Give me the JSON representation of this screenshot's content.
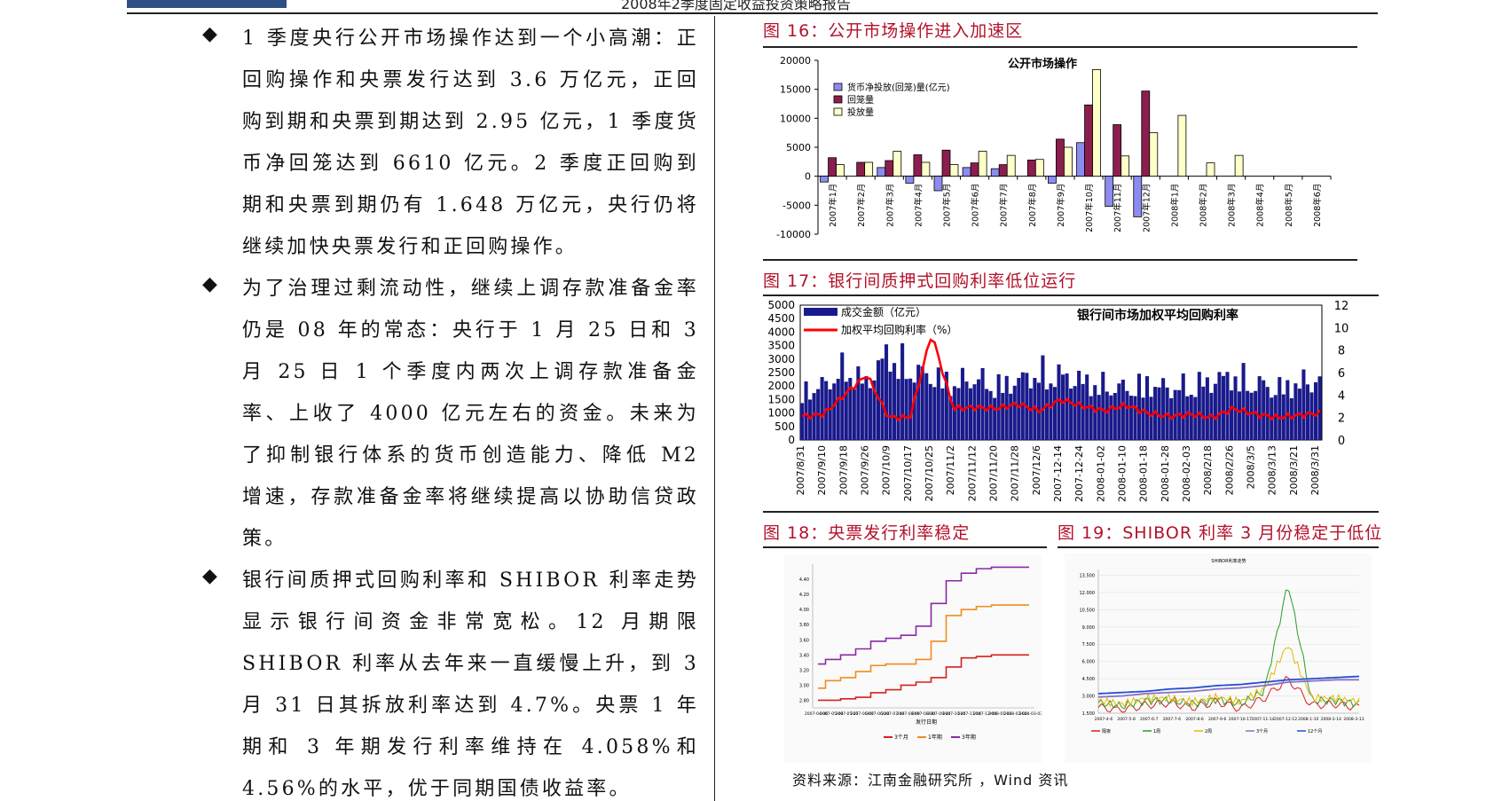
{
  "header": {
    "title": "2008年2季度固定收益投资策略报告"
  },
  "left_column": {
    "bullets": [
      "1 季度央行公开市场操作达到一个小高潮：正回购操作和央票发行达到 3.6 万亿元，正回购到期和央票到期达到 2.95 亿元，1 季度货币净回笼达到 6610 亿元。2 季度正回购到期和央票到期仍有 1.648 万亿元，央行仍将继续加快央票发行和正回购操作。",
      "为了治理过剩流动性，继续上调存款准备金率仍是 08 年的常态：央行于 1 月 25 日和 3 月 25 日 1 个季度内两次上调存款准备金率、上收了 4000 亿元左右的资金。未来为了抑制银行体系的货币创造能力、降低 M2 增速，存款准备金率将继续提高以协助信贷政策。",
      "银行间质押式回购利率和 SHIBOR 利率走势显示银行间资金非常宽松。12 月期限 SHIBOR 利率从去年来一直缓慢上升，到 3 月 31 日其拆放利率达到 4.7%。央票 1 年期和 3 年期发行利率维持在 4.058%和 4.56%的水平，优于同期国债收益率。"
    ]
  },
  "figures": {
    "fig16_title": "图 16：公开市场操作进入加速区",
    "fig17_title": "图 17：银行间质押式回购利率低位运行",
    "fig18_title": "图 18：央票发行利率稳定",
    "fig19_title": "图 19：SHIBOR 利率 3 月份稳定于低位"
  },
  "source_note": "资料来源：江南金融研究所 ，Wind 资讯",
  "chart_data": [
    {
      "type": "bar",
      "title": "公开市场操作",
      "categories": [
        "2007年1月",
        "2007年2月",
        "2007年3月",
        "2007年4月",
        "2007年5月",
        "2007年6月",
        "2007年7月",
        "2007年8月",
        "2007年9月",
        "2007年10月",
        "2007年11月",
        "2007年12月",
        "2008年1月",
        "2008年2月",
        "2008年3月",
        "2008年4月",
        "2008年5月",
        "2008年6月"
      ],
      "ylim": [
        -10000,
        20000
      ],
      "yticks": [
        20000,
        15000,
        10000,
        5000,
        0,
        -5000,
        -10000
      ],
      "legend_position": "top-left",
      "series": [
        {
          "name": "货币净投放(回笼)量(亿元)",
          "color": "#8c8cf0",
          "values": [
            -1000,
            0,
            1500,
            -1200,
            -2500,
            1500,
            1300,
            0,
            -1200,
            5800,
            -5200,
            -7000,
            0,
            0,
            0,
            0,
            0,
            0
          ]
        },
        {
          "name": "回笼量",
          "color": "#8b1e4e",
          "values": [
            3200,
            2400,
            2700,
            3700,
            4500,
            2300,
            2000,
            2800,
            6400,
            12300,
            8900,
            14700,
            0,
            0,
            0,
            0,
            0,
            0
          ]
        },
        {
          "name": "投放量",
          "color": "#ffffc8",
          "values": [
            2000,
            2400,
            4300,
            2400,
            2000,
            4300,
            3600,
            2900,
            5000,
            18400,
            3500,
            7500,
            10500,
            2300,
            3600,
            0,
            0,
            0
          ]
        }
      ]
    },
    {
      "type": "bar",
      "title": "银行间市场加权平均回购利率",
      "x_tick_labels": [
        "2007/8/31",
        "2007/9/10",
        "2007/9/18",
        "2007/9/26",
        "2007/10/9",
        "2007/10/17",
        "2007/10/25",
        "2007/11/2",
        "2007/11/12",
        "2007/11/20",
        "2007/11/28",
        "2007/12/6",
        "2007-12-14",
        "2007-12-24",
        "2008-01-02",
        "2008-01-10",
        "2008-01-18",
        "2008-01-28",
        "2008-02-03",
        "2008/2/18",
        "2008/2/26",
        "2008/3/5",
        "2008/3/13",
        "2008/3/21",
        "2008/3/31"
      ],
      "ylim_left": [
        0,
        5000
      ],
      "yticks_left": [
        5000,
        4500,
        4000,
        3500,
        3000,
        2500,
        2000,
        1500,
        1000,
        500,
        0
      ],
      "ylim_right": [
        0,
        12
      ],
      "yticks_right": [
        12,
        10,
        8,
        6,
        4,
        2,
        0
      ],
      "legend_position": "top-left",
      "series": [
        {
          "name": "成交金额（亿元）",
          "color": "#1a1a8c",
          "values": [
            1900,
            2100,
            2800,
            2200,
            3400,
            2700,
            2500,
            2200,
            2400,
            2100,
            2300,
            2600,
            2500,
            2300,
            2100,
            2000,
            2200,
            2000,
            2100,
            2300,
            2500,
            2200,
            2000,
            2200,
            2400
          ]
        },
        {
          "name": "加权平均回购利率（%）",
          "color": "#ff0000",
          "axis": "right",
          "values": [
            2.1,
            2.3,
            4.1,
            5.8,
            2.0,
            2.0,
            9.5,
            2.8,
            2.9,
            2.8,
            3.2,
            2.6,
            3.6,
            3.0,
            2.6,
            3.1,
            2.4,
            2.1,
            2.3,
            2.0,
            2.8,
            2.3,
            2.0,
            2.2,
            2.4
          ]
        }
      ]
    },
    {
      "type": "line",
      "x_tick_labels": [
        "2007-04-06",
        "2007-05-08",
        "2007-05-27",
        "2007-06-07",
        "2007-06-28",
        "2007-07-19",
        "2007-08-09",
        "2007-08-30",
        "2007-09-20",
        "2007-10-25",
        "2007-11-14",
        "2007-12-06",
        "2008-01-03",
        "2008-02-02",
        "2008-03-03"
      ],
      "xlabel": "发行日期",
      "yticks": [
        2.8,
        3.0,
        3.2,
        3.4,
        3.6,
        3.8,
        4.0,
        4.2,
        4.4
      ],
      "ylim": [
        2.7,
        4.6
      ],
      "series": [
        {
          "name": "3个月",
          "color": "#d62020",
          "values": [
            2.8,
            2.8,
            2.82,
            2.84,
            2.9,
            2.94,
            3.0,
            3.04,
            3.1,
            3.24,
            3.36,
            3.38,
            3.4,
            3.4,
            3.4
          ]
        },
        {
          "name": "1年期",
          "color": "#f28c1c",
          "values": [
            2.96,
            3.06,
            3.1,
            3.18,
            3.26,
            3.28,
            3.28,
            3.34,
            3.58,
            3.92,
            4.0,
            4.04,
            4.06,
            4.06,
            4.06
          ]
        },
        {
          "name": "3年期",
          "color": "#8a2aa5",
          "values": [
            3.28,
            3.34,
            3.4,
            3.48,
            3.58,
            3.62,
            3.66,
            3.78,
            4.08,
            4.38,
            4.48,
            4.54,
            4.56,
            4.56,
            4.56
          ]
        }
      ]
    },
    {
      "type": "line",
      "title": "SHIBOR利率走势",
      "x_tick_labels": [
        "2007-4-6",
        "2007-5-8",
        "2007-6-7",
        "2007-7-6",
        "2007-8-6",
        "2007-9-6",
        "2007-10-17",
        "2007-11-14",
        "2007-12-12",
        "2008-1-10",
        "2008-2-14",
        "2008-3-13"
      ],
      "yticks": [
        1.5,
        3.0,
        4.5,
        6.0,
        7.5,
        9.0,
        10.5,
        12.0,
        13.5
      ],
      "ylim": [
        1.5,
        14.0
      ],
      "series": [
        {
          "name": "隔夜",
          "color": "#d62020",
          "values": [
            2.0,
            1.8,
            2.2,
            2.4,
            2.0,
            2.5,
            1.9,
            2.8,
            4.5,
            2.2,
            2.3,
            2.0
          ]
        },
        {
          "name": "1周",
          "color": "#2a9a2a",
          "values": [
            2.4,
            2.1,
            2.6,
            2.6,
            2.3,
            2.7,
            2.3,
            3.4,
            12.8,
            2.6,
            2.6,
            2.3
          ]
        },
        {
          "name": "2周",
          "color": "#e6b800",
          "values": [
            2.6,
            2.3,
            2.8,
            2.8,
            2.5,
            2.9,
            2.5,
            3.6,
            7.5,
            2.8,
            2.8,
            2.5
          ]
        },
        {
          "name": "3个月",
          "color": "#8a6fc8",
          "values": [
            2.9,
            3.0,
            3.2,
            3.3,
            3.4,
            3.6,
            3.7,
            3.9,
            4.2,
            4.3,
            4.4,
            4.4
          ]
        },
        {
          "name": "12个月",
          "color": "#2050d0",
          "values": [
            3.2,
            3.3,
            3.4,
            3.6,
            3.7,
            3.9,
            4.0,
            4.2,
            4.4,
            4.5,
            4.6,
            4.7
          ]
        }
      ]
    }
  ]
}
